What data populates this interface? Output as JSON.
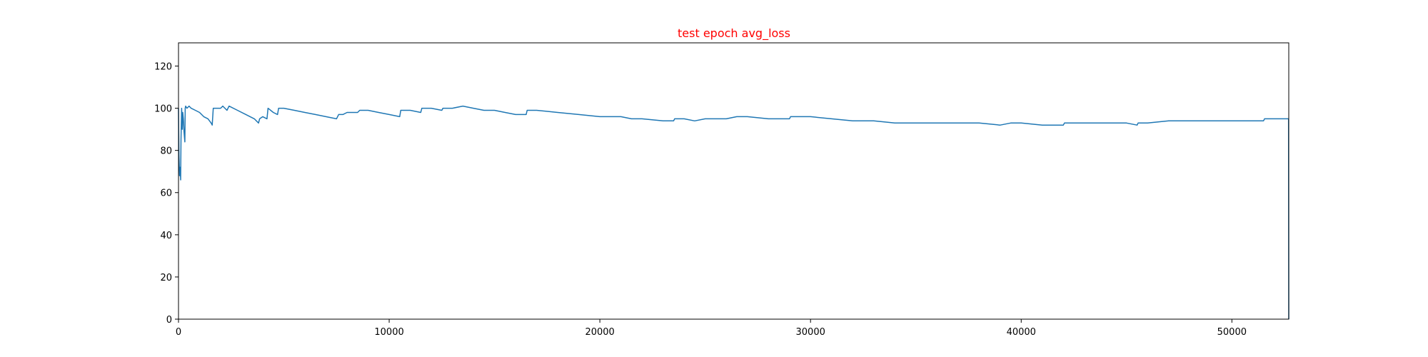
{
  "chart_data": {
    "type": "line",
    "title": "test epoch avg_loss",
    "title_color": "#ff0000",
    "xlabel": "",
    "ylabel": "",
    "xlim": [
      0,
      52700
    ],
    "ylim": [
      0,
      131
    ],
    "xticks": [
      0,
      10000,
      20000,
      30000,
      40000,
      50000
    ],
    "xtick_labels": [
      "0",
      "10000",
      "20000",
      "30000",
      "40000",
      "50000"
    ],
    "yticks": [
      0,
      20,
      40,
      60,
      80,
      100,
      120
    ],
    "ytick_labels": [
      "0",
      "20",
      "40",
      "60",
      "80",
      "100",
      "120"
    ],
    "grid": false,
    "legend": "none",
    "series": [
      {
        "color": "#1f77b4",
        "x": [
          0,
          20,
          50,
          80,
          100,
          120,
          150,
          180,
          200,
          230,
          260,
          300,
          320,
          340,
          400,
          500,
          600,
          800,
          1000,
          1200,
          1400,
          1550,
          1600,
          1650,
          1700,
          2000,
          2100,
          2300,
          2400,
          2800,
          3200,
          3600,
          3800,
          3850,
          4000,
          4200,
          4250,
          4500,
          4700,
          4750,
          5000,
          5500,
          6000,
          6500,
          7000,
          7500,
          7600,
          7800,
          8000,
          8500,
          8600,
          9000,
          9500,
          10000,
          10500,
          10550,
          11000,
          11500,
          11550,
          12000,
          12500,
          12550,
          13000,
          13500,
          14000,
          14500,
          15000,
          15500,
          16000,
          16500,
          16550,
          17000,
          18000,
          19000,
          20000,
          21000,
          21500,
          21550,
          22000,
          23000,
          23500,
          23550,
          24000,
          24500,
          25000,
          25500,
          26000,
          26500,
          27000,
          28000,
          29000,
          29050,
          30000,
          31000,
          32000,
          33000,
          34000,
          35000,
          36000,
          37000,
          37050,
          38000,
          39000,
          39500,
          40000,
          41000,
          42000,
          42050,
          43000,
          44000,
          45000,
          45500,
          45550,
          46000,
          47000,
          47500,
          48000,
          49000,
          49500,
          50000,
          51000,
          51500,
          51550,
          52000,
          52600,
          52690,
          52700
        ],
        "y": [
          100,
          78,
          68,
          72,
          66,
          85,
          100,
          90,
          98,
          95,
          89,
          84,
          100,
          101,
          100,
          101,
          100,
          99,
          98,
          96,
          95,
          93,
          92,
          100,
          100,
          100,
          101,
          99,
          101,
          99,
          97,
          95,
          93,
          95,
          96,
          95,
          100,
          98,
          97,
          100,
          100,
          99,
          98,
          97,
          96,
          95,
          97,
          97,
          98,
          98,
          99,
          99,
          98,
          97,
          96,
          99,
          99,
          98,
          100,
          100,
          99,
          100,
          100,
          101,
          100,
          99,
          99,
          98,
          97,
          97,
          99,
          99,
          98,
          97,
          96,
          96,
          95,
          95,
          95,
          94,
          94,
          95,
          95,
          94,
          95,
          95,
          95,
          96,
          96,
          95,
          95,
          96,
          96,
          95,
          94,
          94,
          93,
          93,
          93,
          93,
          93,
          93,
          92,
          93,
          93,
          92,
          92,
          93,
          93,
          93,
          93,
          92,
          93,
          93,
          94,
          94,
          94,
          94,
          94,
          94,
          94,
          94,
          95,
          95,
          95,
          95,
          0
        ]
      }
    ]
  }
}
